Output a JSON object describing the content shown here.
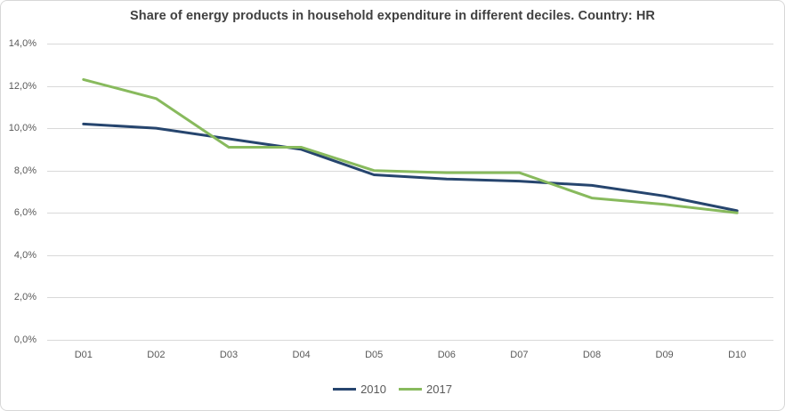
{
  "chart_data": {
    "type": "line",
    "title": "Share of energy products in household expenditure in different deciles. Country: HR",
    "categories": [
      "D01",
      "D02",
      "D03",
      "D04",
      "D05",
      "D06",
      "D07",
      "D08",
      "D09",
      "D10"
    ],
    "series": [
      {
        "name": "2010",
        "color": "#26456e",
        "values": [
          10.2,
          10.0,
          9.5,
          9.0,
          7.8,
          7.6,
          7.5,
          7.3,
          6.8,
          6.1
        ]
      },
      {
        "name": "2017",
        "color": "#88ba5d",
        "values": [
          12.3,
          11.4,
          9.1,
          9.1,
          8.0,
          7.9,
          7.9,
          6.7,
          6.4,
          6.0
        ]
      }
    ],
    "xlabel": "",
    "ylabel": "",
    "ylim": [
      0,
      14
    ],
    "ytick_step": 2,
    "ytick_labels": [
      "0,0%",
      "2,0%",
      "4,0%",
      "6,0%",
      "8,0%",
      "10,0%",
      "12,0%",
      "14,0%"
    ],
    "grid": true,
    "gridline_color": "#d9d9d9",
    "legend_position": "bottom",
    "text_color": "#595959",
    "title_color": "#404040"
  }
}
